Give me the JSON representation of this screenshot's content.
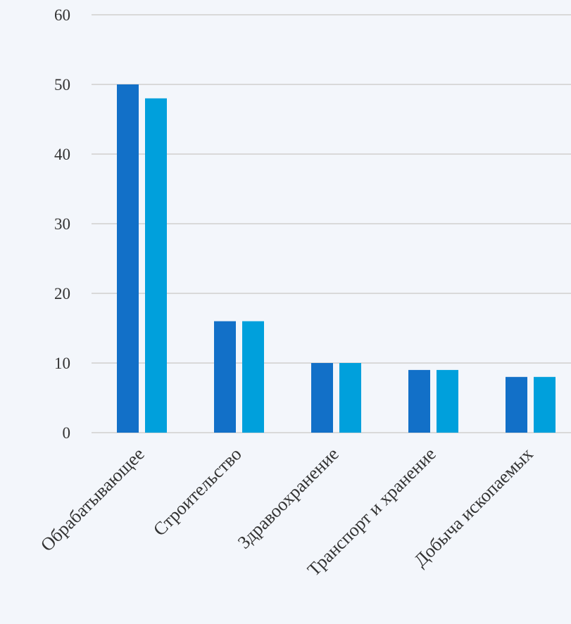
{
  "chart_data": {
    "type": "bar",
    "categories": [
      "Обрабатывающее",
      "Строительство",
      "Здравоохранение",
      "Транспорт и хранение",
      "Добыча ископаемых"
    ],
    "series": [
      {
        "values": [
          50,
          16,
          10,
          9,
          8
        ]
      },
      {
        "values": [
          48,
          16,
          10,
          9,
          8
        ]
      }
    ],
    "ylim": [
      0,
      60
    ],
    "yticks": [
      0,
      10,
      20,
      30,
      40,
      50,
      60
    ],
    "title": "",
    "xlabel": "",
    "ylabel": "",
    "grid": true,
    "legend": "none"
  },
  "colors": {
    "series": [
      "#1270c8",
      "#00a0dc"
    ],
    "grid": "#d9d9d9",
    "text": "#333333",
    "background": "#f3f6fb"
  }
}
